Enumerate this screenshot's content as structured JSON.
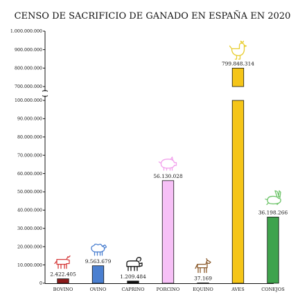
{
  "chart_data": {
    "type": "bar",
    "title": "CENSO DE SACRIFICIO DE GANADO EN ESPAÑA EN 2020",
    "xlabel": "",
    "ylabel": "",
    "categories": [
      "BOVINO",
      "OVINO",
      "CAPRINO",
      "PORCINO",
      "EQUINO",
      "AVES",
      "CONEJOS"
    ],
    "values": [
      2422405,
      9563679,
      1209484,
      56130028,
      37169,
      799848314,
      36198266
    ],
    "value_labels": [
      "2.422.405",
      "9.563.679",
      "1.209.484",
      "56.130.028",
      "37.169",
      "799.848.314",
      "36.198.266"
    ],
    "colors": [
      "#8b1a1a",
      "#4a7fd0",
      "#111111",
      "#f6c0f6",
      "#8b5a2b",
      "#f5c518",
      "#3fa34d"
    ],
    "icon_colors": [
      "#d63b3b",
      "#4a7fd0",
      "#111111",
      "#f2a0ec",
      "#8b5a2b",
      "#e8cd2f",
      "#6ec46a"
    ],
    "icons": [
      "cow-icon",
      "sheep-icon",
      "goat-icon",
      "pig-icon",
      "horse-icon",
      "chicken-icon",
      "rabbit-icon"
    ],
    "ylim_lower": [
      0,
      100000000
    ],
    "ylim_upper": [
      700000000,
      1000000000
    ],
    "axis_break": true,
    "yticks_lower": [
      "0",
      "10.000.000",
      "20.000.000",
      "30.000.000",
      "40.000.000",
      "50.000.000",
      "60.000.000",
      "70.000.000",
      "80.000.000",
      "90.000.000",
      "100.000.000"
    ],
    "yticks_upper": [
      "700.000.000",
      "800.000.000",
      "900.000.000",
      "1.000.000.000"
    ],
    "grid": false,
    "legend": "none"
  }
}
